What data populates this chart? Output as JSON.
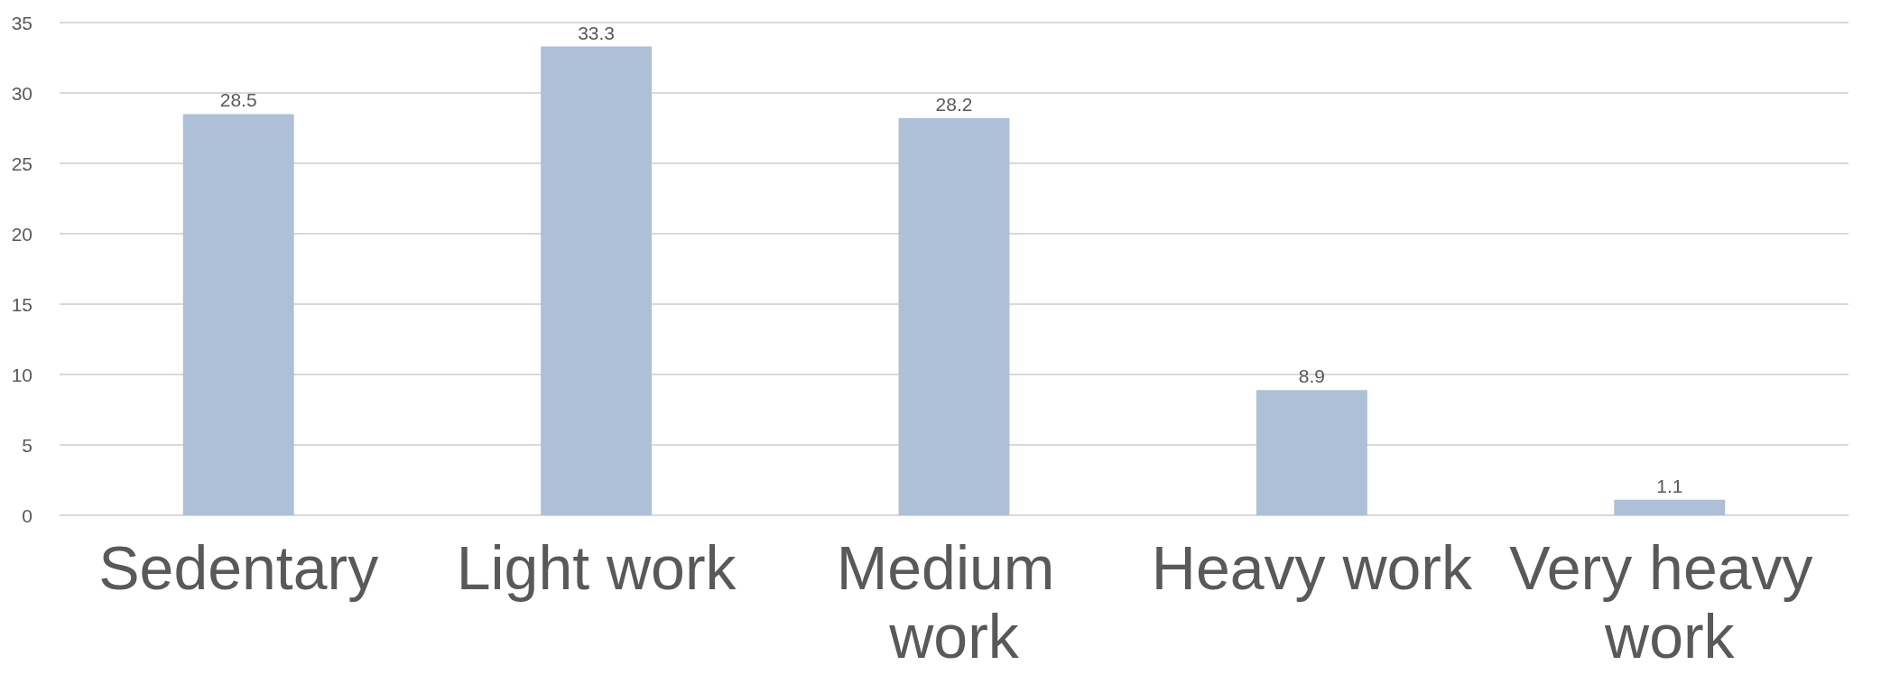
{
  "chart_data": {
    "type": "bar",
    "categories": [
      "Sedentary",
      "Light work",
      "Medium work",
      "Heavy work",
      "Very heavy work"
    ],
    "values": [
      28.5,
      33.3,
      28.2,
      8.9,
      1.1
    ],
    "color": "#adc0d7",
    "ylim": [
      0,
      35
    ],
    "yticks": [
      0,
      5,
      10,
      15,
      20,
      25,
      30,
      35
    ],
    "grid": "y",
    "data_labels": true
  }
}
